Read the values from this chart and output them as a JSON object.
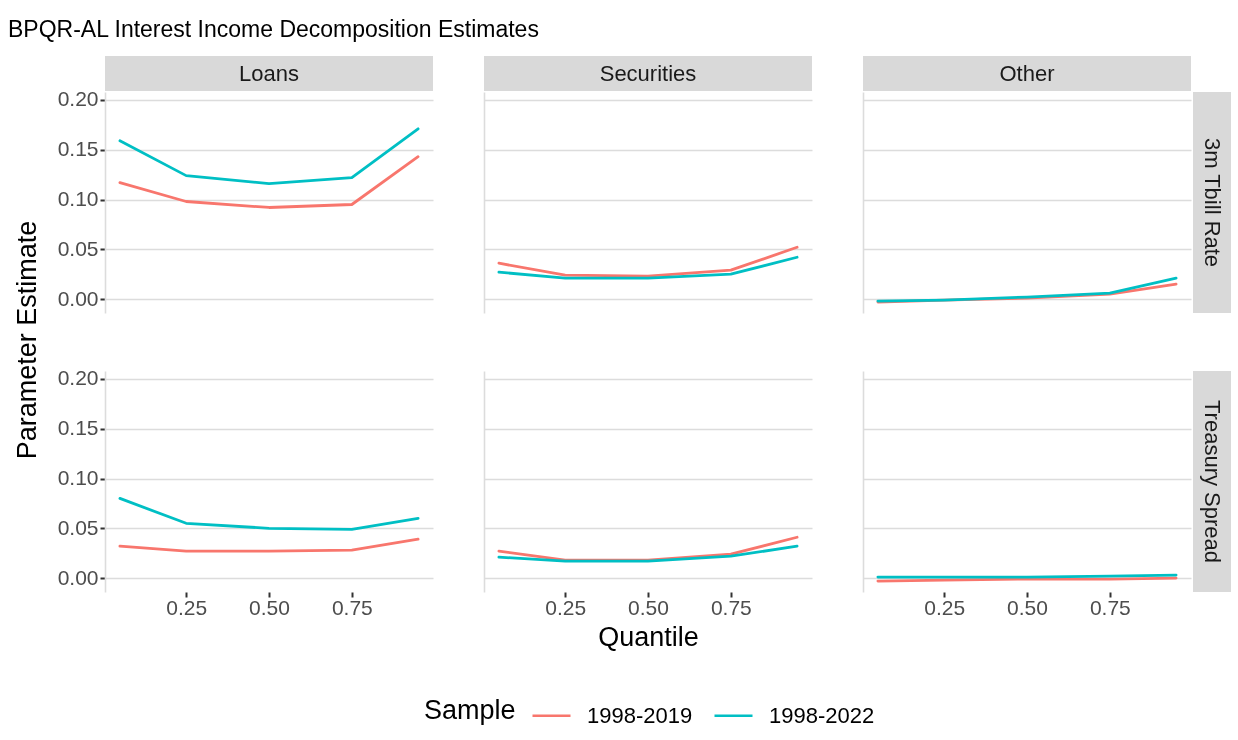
{
  "chart_data": [
    {
      "type": "line",
      "title": "BPQR-AL Interest Income Decomposition Estimates",
      "subtitle": "Loans",
      "ylabel": "Parameter Estimate",
      "legend": "bottom",
      "legend_title": "Sample",
      "x": [
        0.05,
        0.25,
        0.5,
        0.75,
        0.95
      ],
      "xlim": [
        0.005,
        0.995
      ],
      "ylim": [
        -0.014,
        0.208
      ],
      "yticks": [
        {
          "value": 0,
          "label": "0.00"
        },
        {
          "value": 0.05,
          "label": "0.05"
        },
        {
          "value": 0.1,
          "label": "0.10"
        },
        {
          "value": 0.15,
          "label": "0.15"
        },
        {
          "value": 0.2,
          "label": "0.20"
        }
      ],
      "grid": "y",
      "tick_labels": "y",
      "series": [
        {
          "name": "1998-2019",
          "color": "#f8766d",
          "values": [
            0.117,
            0.098,
            0.092,
            0.095,
            0.143
          ]
        },
        {
          "name": "1998-2022",
          "color": "#00bfc4",
          "values": [
            0.159,
            0.124,
            0.116,
            0.122,
            0.171
          ]
        }
      ]
    },
    {
      "type": "line",
      "subtitle": "Securities",
      "x": [
        0.05,
        0.25,
        0.5,
        0.75,
        0.95
      ],
      "xlim": [
        0.005,
        0.995
      ],
      "ylim": [
        -0.014,
        0.208
      ],
      "yticks": [
        {
          "value": 0,
          "label": "0.00"
        },
        {
          "value": 0.05,
          "label": "0.05"
        },
        {
          "value": 0.1,
          "label": "0.10"
        },
        {
          "value": 0.15,
          "label": "0.15"
        },
        {
          "value": 0.2,
          "label": "0.20"
        }
      ],
      "grid": "y",
      "tick_labels": false,
      "series": [
        {
          "name": "1998-2019",
          "color": "#f8766d",
          "values": [
            0.036,
            0.024,
            0.023,
            0.029,
            0.052
          ]
        },
        {
          "name": "1998-2022",
          "color": "#00bfc4",
          "values": [
            0.027,
            0.021,
            0.021,
            0.025,
            0.042
          ]
        }
      ]
    },
    {
      "type": "line",
      "subtitle": "Other",
      "y2label": "3m Tbill Rate",
      "x": [
        0.05,
        0.25,
        0.5,
        0.75,
        0.95
      ],
      "xlim": [
        0.005,
        0.995
      ],
      "ylim": [
        -0.014,
        0.208
      ],
      "yticks": [
        {
          "value": 0,
          "label": "0.00"
        },
        {
          "value": 0.05,
          "label": "0.05"
        },
        {
          "value": 0.1,
          "label": "0.10"
        },
        {
          "value": 0.15,
          "label": "0.15"
        },
        {
          "value": 0.2,
          "label": "0.20"
        }
      ],
      "grid": "y",
      "tick_labels": false,
      "series": [
        {
          "name": "1998-2019",
          "color": "#f8766d",
          "values": [
            -0.003,
            -0.001,
            0.001,
            0.005,
            0.015
          ]
        },
        {
          "name": "1998-2022",
          "color": "#00bfc4",
          "values": [
            -0.002,
            -0.001,
            0.002,
            0.006,
            0.021
          ]
        }
      ]
    },
    {
      "type": "line",
      "x": [
        0.05,
        0.25,
        0.5,
        0.75,
        0.95
      ],
      "xlim": [
        0.005,
        0.995
      ],
      "ylim": [
        -0.014,
        0.208
      ],
      "xticks": [
        {
          "value": 0.25,
          "label": "0.25"
        },
        {
          "value": 0.5,
          "label": "0.50"
        },
        {
          "value": 0.75,
          "label": "0.75"
        }
      ],
      "yticks": [
        {
          "value": 0,
          "label": "0.00"
        },
        {
          "value": 0.05,
          "label": "0.05"
        },
        {
          "value": 0.1,
          "label": "0.10"
        },
        {
          "value": 0.15,
          "label": "0.15"
        },
        {
          "value": 0.2,
          "label": "0.20"
        }
      ],
      "grid": "y",
      "series": [
        {
          "name": "1998-2019",
          "color": "#f8766d",
          "values": [
            0.032,
            0.027,
            0.027,
            0.028,
            0.039
          ]
        },
        {
          "name": "1998-2022",
          "color": "#00bfc4",
          "values": [
            0.08,
            0.055,
            0.05,
            0.049,
            0.06
          ]
        }
      ]
    },
    {
      "type": "line",
      "xlabel": "Quantile",
      "x": [
        0.05,
        0.25,
        0.5,
        0.75,
        0.95
      ],
      "xlim": [
        0.005,
        0.995
      ],
      "ylim": [
        -0.014,
        0.208
      ],
      "xticks": [
        {
          "value": 0.25,
          "label": "0.25"
        },
        {
          "value": 0.5,
          "label": "0.50"
        },
        {
          "value": 0.75,
          "label": "0.75"
        }
      ],
      "yticks": [
        {
          "value": 0,
          "label": "0.00"
        },
        {
          "value": 0.05,
          "label": "0.05"
        },
        {
          "value": 0.1,
          "label": "0.10"
        },
        {
          "value": 0.15,
          "label": "0.15"
        },
        {
          "value": 0.2,
          "label": "0.20"
        }
      ],
      "grid": "y",
      "tick_labels": "x",
      "series": [
        {
          "name": "1998-2019",
          "color": "#f8766d",
          "values": [
            0.027,
            0.018,
            0.018,
            0.024,
            0.041
          ]
        },
        {
          "name": "1998-2022",
          "color": "#00bfc4",
          "values": [
            0.021,
            0.017,
            0.017,
            0.022,
            0.032
          ]
        }
      ]
    },
    {
      "type": "line",
      "y2label": "Treasury Spread",
      "x": [
        0.05,
        0.25,
        0.5,
        0.75,
        0.95
      ],
      "xlim": [
        0.005,
        0.995
      ],
      "ylim": [
        -0.014,
        0.208
      ],
      "xticks": [
        {
          "value": 0.25,
          "label": "0.25"
        },
        {
          "value": 0.5,
          "label": "0.50"
        },
        {
          "value": 0.75,
          "label": "0.75"
        }
      ],
      "yticks": [
        {
          "value": 0,
          "label": "0.00"
        },
        {
          "value": 0.05,
          "label": "0.05"
        },
        {
          "value": 0.1,
          "label": "0.10"
        },
        {
          "value": 0.15,
          "label": "0.15"
        },
        {
          "value": 0.2,
          "label": "0.20"
        }
      ],
      "grid": "y",
      "tick_labels": "x",
      "series": [
        {
          "name": "1998-2019",
          "color": "#f8766d",
          "values": [
            -0.003,
            -0.002,
            -0.001,
            -0.001,
            0.0
          ]
        },
        {
          "name": "1998-2022",
          "color": "#00bfc4",
          "values": [
            0.001,
            0.001,
            0.001,
            0.002,
            0.003
          ]
        }
      ]
    }
  ]
}
